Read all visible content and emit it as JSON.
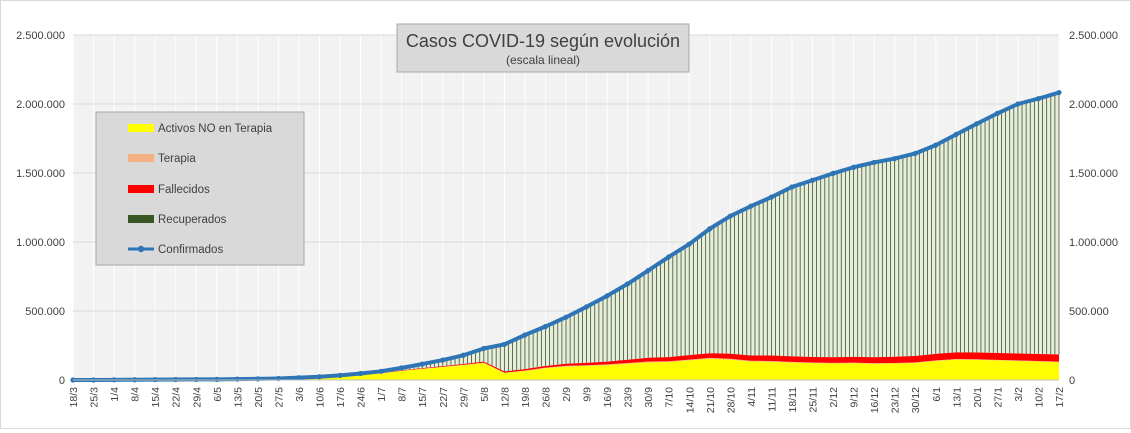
{
  "chart_data": {
    "type": "area",
    "title": "Casos COVID-19 según evolución",
    "subtitle": "(escala lineal)",
    "ylim": [
      0,
      2500000
    ],
    "y_ticks": [
      "0",
      "500.000",
      "1.000.000",
      "1.500.000",
      "2.000.000",
      "2.500.000"
    ],
    "y_tick_values": [
      0,
      500000,
      1000000,
      1500000,
      2000000,
      2500000
    ],
    "x_tick_labels": [
      "18/3",
      "25/3",
      "1/4",
      "8/4",
      "15/4",
      "22/4",
      "29/4",
      "6/5",
      "13/5",
      "20/5",
      "27/5",
      "3/6",
      "10/6",
      "17/6",
      "24/6",
      "1/7",
      "8/7",
      "15/7",
      "22/7",
      "29/7",
      "5/8",
      "12/8",
      "19/8",
      "26/8",
      "2/9",
      "9/9",
      "16/9",
      "23/9",
      "30/9",
      "7/10",
      "14/10",
      "21/10",
      "28/10",
      "4/11",
      "11/11",
      "18/11",
      "25/11",
      "2/12",
      "9/12",
      "16/12",
      "23/12",
      "30/12",
      "6/1",
      "13/1",
      "20/1",
      "27/1",
      "3/2",
      "10/2",
      "17/2"
    ],
    "grid": true,
    "legend_position": "left",
    "series": [
      {
        "name": "Activos NO en Terapia",
        "color": "#ffff00",
        "values": [
          0,
          0,
          1000,
          1000,
          2000,
          2000,
          2000,
          2000,
          3000,
          4000,
          6000,
          11000,
          17000,
          25000,
          35000,
          48000,
          65000,
          80000,
          93000,
          107000,
          122000,
          50000,
          65000,
          85000,
          98000,
          102000,
          108000,
          118000,
          128000,
          130000,
          142000,
          154000,
          148000,
          134000,
          132000,
          126000,
          122000,
          120000,
          122000,
          118000,
          120000,
          124000,
          138000,
          148000,
          146000,
          142000,
          138000,
          134000,
          130000
        ]
      },
      {
        "name": "Terapia",
        "color": "#f4b183",
        "values": [
          0,
          0,
          200,
          300,
          400,
          400,
          400,
          400,
          400,
          400,
          500,
          600,
          800,
          1000,
          1300,
          1700,
          2100,
          2500,
          2900,
          3200,
          3500,
          3800,
          4100,
          4500,
          4900,
          5100,
          5400,
          5600,
          5800,
          5900,
          6000,
          6100,
          6000,
          5700,
          5300,
          4900,
          4500,
          4100,
          3700,
          3500,
          3400,
          3500,
          3900,
          4100,
          4100,
          4000,
          3800,
          3600,
          3500
        ]
      },
      {
        "name": "Fallecidos",
        "color": "#ff0000",
        "values": [
          0,
          0,
          50,
          100,
          150,
          200,
          250,
          300,
          350,
          400,
          500,
          800,
          1000,
          1300,
          1700,
          2300,
          3000,
          4000,
          4500,
          6000,
          7500,
          8500,
          10000,
          12000,
          15000,
          17000,
          20000,
          23000,
          27000,
          30000,
          32000,
          34000,
          36000,
          38000,
          40000,
          40000,
          40000,
          41000,
          42000,
          43000,
          45000,
          46000,
          47000,
          48000,
          49000,
          50000,
          50000,
          51000,
          51000
        ]
      },
      {
        "name": "Recuperados",
        "color": "#375623",
        "values": [
          0,
          0,
          100,
          200,
          500,
          1000,
          1500,
          2000,
          3000,
          3500,
          4000,
          4500,
          5000,
          6000,
          9000,
          11000,
          18000,
          29000,
          44000,
          63000,
          95000,
          196000,
          247000,
          286000,
          337000,
          406000,
          476000,
          550000,
          632000,
          726000,
          806000,
          902000,
          998000,
          1081000,
          1148000,
          1228000,
          1285000,
          1332000,
          1374000,
          1412000,
          1436000,
          1468000,
          1513000,
          1580000,
          1658000,
          1736000,
          1806000,
          1854000,
          1898000
        ]
      },
      {
        "name": "Confirmados",
        "color": "#2e75b6",
        "values": [
          0,
          0,
          1350,
          1600,
          3050,
          3600,
          4150,
          4700,
          6750,
          8300,
          11000,
          16900,
          23800,
          33300,
          47000,
          63000,
          88100,
          115500,
          144400,
          179200,
          228500,
          258300,
          326100,
          387500,
          454900,
          530100,
          609400,
          696600,
          792800,
          891800,
          985000,
          1096200,
          1188000,
          1259700,
          1325300,
          1398900,
          1447500,
          1497100,
          1541700,
          1576500,
          1604400,
          1641500,
          1701900,
          1780100,
          1857100,
          1932000,
          2000000,
          2039000,
          2083000
        ]
      }
    ]
  }
}
